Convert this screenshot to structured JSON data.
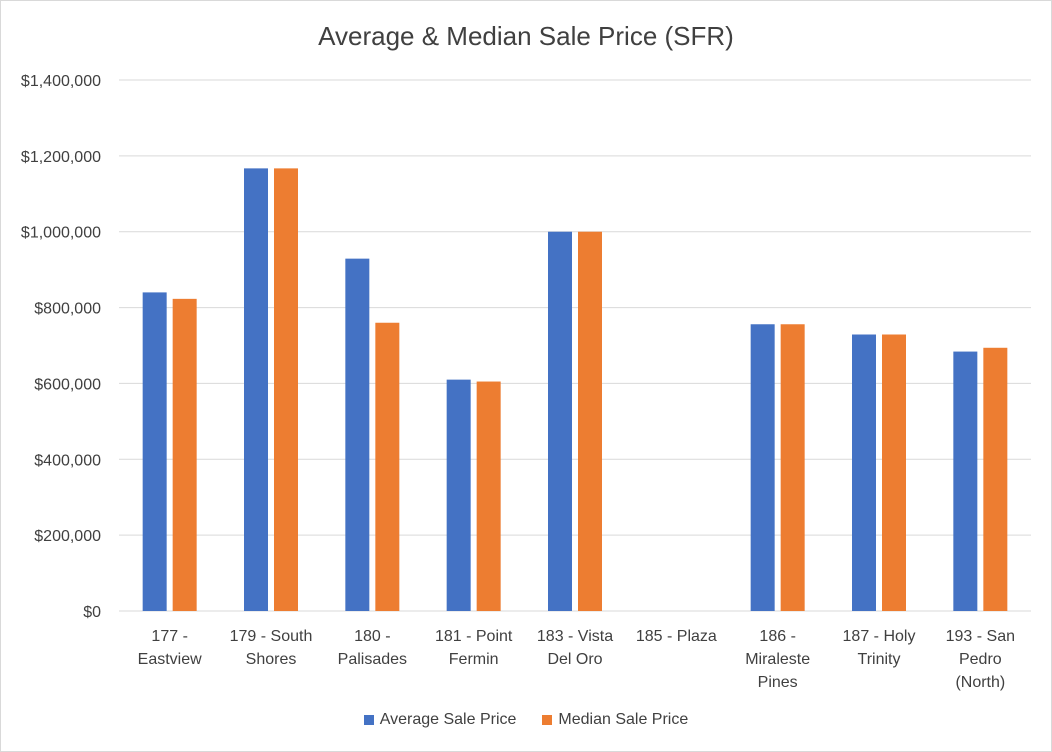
{
  "chart_data": {
    "type": "bar",
    "title": "Average & Median Sale Price (SFR)",
    "xlabel": "",
    "ylabel": "",
    "ylim": [
      0,
      1400000
    ],
    "y_ticks": [
      0,
      200000,
      400000,
      600000,
      800000,
      1000000,
      1200000,
      1400000
    ],
    "y_tick_labels": [
      "$0",
      "$200,000",
      "$400,000",
      "$600,000",
      "$800,000",
      "$1,000,000",
      "$1,200,000",
      "$1,400,000"
    ],
    "grid": true,
    "legend_position": "bottom",
    "categories": [
      [
        "177 -",
        "Eastview"
      ],
      [
        "179 - South",
        "Shores"
      ],
      [
        "180 -",
        "Palisades"
      ],
      [
        "181 - Point",
        "Fermin"
      ],
      [
        "183 - Vista",
        "Del Oro"
      ],
      [
        "185 - Plaza"
      ],
      [
        "186 -",
        "Miraleste",
        "Pines"
      ],
      [
        "187 - Holy",
        "Trinity"
      ],
      [
        "193 - San",
        "Pedro",
        "(North)"
      ]
    ],
    "series": [
      {
        "name": "Average Sale Price",
        "color": "#4472c4",
        "values": [
          840000,
          1167000,
          929000,
          610000,
          1000000,
          null,
          756000,
          729000,
          684000
        ]
      },
      {
        "name": "Median Sale Price",
        "color": "#ed7d31",
        "values": [
          823000,
          1167000,
          760000,
          605000,
          1000000,
          null,
          756000,
          729000,
          694000
        ]
      }
    ]
  }
}
